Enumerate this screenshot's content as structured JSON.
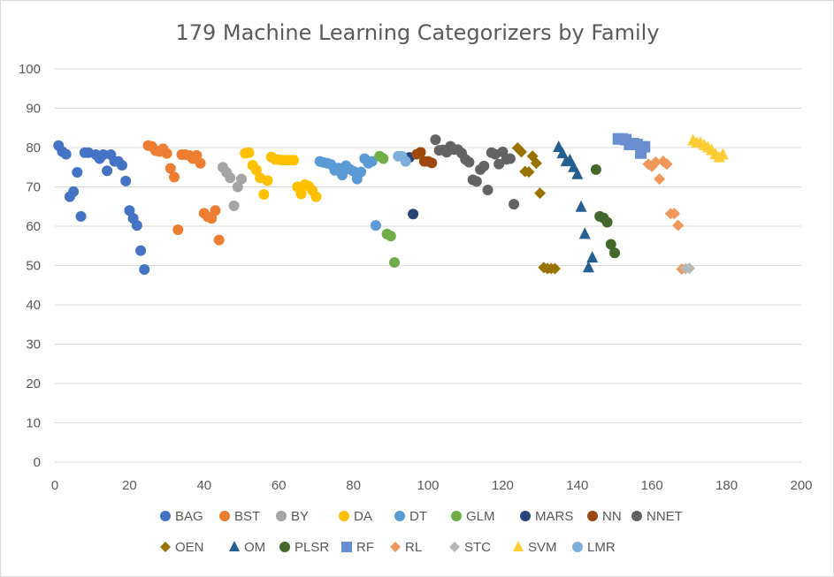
{
  "chart_data": {
    "type": "scatter",
    "title": "179 Machine Learning Categorizers by Family",
    "xlabel": "",
    "ylabel": "",
    "xlim": [
      0,
      200
    ],
    "ylim": [
      0,
      100
    ],
    "x_ticks": [
      "0",
      "20",
      "40",
      "60",
      "80",
      "100",
      "120",
      "140",
      "160",
      "180",
      "200"
    ],
    "y_ticks": [
      "0",
      "10",
      "20",
      "30",
      "40",
      "50",
      "60",
      "70",
      "80",
      "90",
      "100"
    ],
    "grid": "horizontal",
    "legend_position": "bottom",
    "series": [
      {
        "name": "BAG",
        "color": "#4472c4",
        "marker": "circle",
        "points": [
          [
            1,
            80.5
          ],
          [
            2,
            79
          ],
          [
            3,
            78.3
          ],
          [
            4,
            67.5
          ],
          [
            5,
            68.8
          ],
          [
            6,
            73.7
          ],
          [
            7,
            62.5
          ],
          [
            8,
            78.7
          ],
          [
            9,
            78.7
          ],
          [
            11,
            78.2
          ],
          [
            12,
            77.2
          ],
          [
            13,
            78.2
          ],
          [
            14,
            74.1
          ],
          [
            15,
            78.2
          ],
          [
            16,
            76.5
          ],
          [
            17,
            76.5
          ],
          [
            18,
            75.5
          ],
          [
            19,
            71.5
          ],
          [
            20,
            64
          ],
          [
            21,
            62
          ],
          [
            22,
            60.2
          ],
          [
            23,
            53.8
          ],
          [
            24,
            49
          ]
        ]
      },
      {
        "name": "BST",
        "color": "#ed7d31",
        "marker": "circle",
        "points": [
          [
            25,
            80.5
          ],
          [
            26,
            80.3
          ],
          [
            27,
            79.2
          ],
          [
            28,
            79
          ],
          [
            29,
            79.7
          ],
          [
            30,
            78.5
          ],
          [
            31,
            74.7
          ],
          [
            32,
            72.5
          ],
          [
            33,
            59.1
          ],
          [
            34,
            78.2
          ],
          [
            35,
            78.2
          ],
          [
            36,
            78
          ],
          [
            37,
            77.2
          ],
          [
            38,
            78
          ],
          [
            39,
            76
          ],
          [
            40,
            63.3
          ],
          [
            41,
            62.4
          ],
          [
            42,
            62
          ],
          [
            43,
            64
          ],
          [
            44,
            56.5
          ]
        ]
      },
      {
        "name": "BY",
        "color": "#a5a5a5",
        "marker": "circle",
        "points": [
          [
            45,
            75
          ],
          [
            46,
            73.7
          ],
          [
            47,
            72.3
          ],
          [
            48,
            65.2
          ],
          [
            49,
            70
          ],
          [
            50,
            72
          ]
        ]
      },
      {
        "name": "DA",
        "color": "#ffc000",
        "marker": "circle",
        "points": [
          [
            51,
            78.5
          ],
          [
            52,
            78.7
          ],
          [
            53,
            75.5
          ],
          [
            54,
            74.3
          ],
          [
            55,
            72.3
          ],
          [
            56,
            68.1
          ],
          [
            57,
            71.6
          ],
          [
            58,
            77.6
          ],
          [
            59,
            77
          ],
          [
            60,
            76.9
          ],
          [
            61,
            76.8
          ],
          [
            62,
            76.8
          ],
          [
            63,
            76.8
          ],
          [
            64,
            76.8
          ],
          [
            65,
            70
          ],
          [
            66,
            68.2
          ],
          [
            67,
            70.6
          ],
          [
            68,
            70.2
          ],
          [
            69,
            69.1
          ],
          [
            70,
            67.5
          ]
        ]
      },
      {
        "name": "DT",
        "color": "#5b9bd5",
        "marker": "circle",
        "points": [
          [
            71,
            76.5
          ],
          [
            72,
            76.2
          ],
          [
            73,
            76
          ],
          [
            74,
            75.7
          ],
          [
            75,
            74.2
          ],
          [
            76,
            74.8
          ],
          [
            77,
            73
          ],
          [
            78,
            75.4
          ],
          [
            79,
            74.5
          ],
          [
            80,
            74
          ],
          [
            81,
            72
          ],
          [
            82,
            73.8
          ],
          [
            83,
            77.2
          ],
          [
            84,
            76
          ],
          [
            85,
            76.5
          ],
          [
            86,
            60.2
          ]
        ]
      },
      {
        "name": "GLM",
        "color": "#70ad47",
        "marker": "circle",
        "points": [
          [
            87,
            77.8
          ],
          [
            88,
            77.2
          ],
          [
            89,
            58
          ],
          [
            90,
            57.5
          ],
          [
            91,
            50.8
          ]
        ]
      },
      {
        "name": "MARS",
        "color": "#264478",
        "marker": "circle",
        "points": [
          [
            95,
            77.5
          ],
          [
            96,
            63.1
          ]
        ]
      },
      {
        "name": "NN",
        "color": "#9e480e",
        "marker": "circle",
        "points": [
          [
            97,
            78.3
          ],
          [
            98,
            78.8
          ],
          [
            99,
            76.5
          ],
          [
            100,
            76.5
          ],
          [
            101,
            76.1
          ]
        ]
      },
      {
        "name": "NNET",
        "color": "#636363",
        "marker": "circle",
        "points": [
          [
            102,
            82
          ],
          [
            103,
            79.3
          ],
          [
            104,
            79.4
          ],
          [
            105,
            78.8
          ],
          [
            106,
            80.3
          ],
          [
            107,
            79.5
          ],
          [
            108,
            79.5
          ],
          [
            109,
            78.6
          ],
          [
            110,
            77
          ],
          [
            111,
            76.3
          ],
          [
            112,
            71.8
          ],
          [
            113,
            71.4
          ],
          [
            114,
            74.4
          ],
          [
            115,
            75.3
          ],
          [
            116,
            69.2
          ],
          [
            117,
            78.7
          ],
          [
            118,
            78.3
          ],
          [
            119,
            75.8
          ],
          [
            120,
            78.9
          ],
          [
            121,
            77
          ],
          [
            122,
            77.2
          ],
          [
            123,
            65.6
          ]
        ]
      },
      {
        "name": "OEN",
        "color": "#997300",
        "marker": "diamond",
        "points": [
          [
            124,
            79.9
          ],
          [
            125,
            78.9
          ],
          [
            126,
            73.9
          ],
          [
            127,
            73.8
          ],
          [
            128,
            77.8
          ],
          [
            129,
            76
          ],
          [
            130,
            68.4
          ],
          [
            131,
            49.5
          ],
          [
            132,
            49.2
          ],
          [
            133,
            49.2
          ],
          [
            134,
            49.2
          ]
        ]
      },
      {
        "name": "OM",
        "color": "#255e91",
        "marker": "triangle",
        "points": [
          [
            135,
            80.1
          ],
          [
            136,
            78.5
          ],
          [
            137,
            76.5
          ],
          [
            138,
            76.8
          ],
          [
            139,
            75
          ],
          [
            140,
            73.2
          ],
          [
            141,
            64.9
          ],
          [
            142,
            58
          ],
          [
            143,
            49.5
          ],
          [
            144,
            52
          ]
        ]
      },
      {
        "name": "PLSR",
        "color": "#43682b",
        "marker": "circle",
        "points": [
          [
            145,
            74.4
          ],
          [
            146,
            62.5
          ],
          [
            147,
            62.1
          ],
          [
            148,
            61
          ],
          [
            149,
            55.4
          ],
          [
            150,
            53.2
          ]
        ]
      },
      {
        "name": "RF",
        "color": "#698ed0",
        "marker": "square",
        "points": [
          [
            151,
            82.2
          ],
          [
            152,
            82.2
          ],
          [
            153,
            82
          ],
          [
            154,
            80.8
          ],
          [
            155,
            81
          ],
          [
            156,
            80.8
          ],
          [
            157,
            78.6
          ],
          [
            158,
            80.2
          ]
        ]
      },
      {
        "name": "RL",
        "color": "#f1975a",
        "marker": "diamond",
        "points": [
          [
            159,
            75.8
          ],
          [
            160,
            75.2
          ],
          [
            161,
            76.3
          ],
          [
            162,
            72
          ],
          [
            163,
            76.5
          ],
          [
            164,
            75.8
          ],
          [
            165,
            63.2
          ],
          [
            166,
            63.2
          ],
          [
            167,
            60.2
          ],
          [
            168,
            49.1
          ]
        ]
      },
      {
        "name": "STC",
        "color": "#b7b7b7",
        "marker": "diamond",
        "points": [
          [
            169,
            49.2
          ],
          [
            170,
            49.3
          ]
        ]
      },
      {
        "name": "SVM",
        "color": "#ffcd33",
        "marker": "triangle",
        "points": [
          [
            171,
            81.8
          ],
          [
            172,
            81.2
          ],
          [
            173,
            81.2
          ],
          [
            174,
            80.6
          ],
          [
            175,
            80
          ],
          [
            176,
            79.3
          ],
          [
            177,
            78.3
          ],
          [
            178,
            77.5
          ],
          [
            179,
            78.2
          ]
        ]
      },
      {
        "name": "LMR",
        "color": "#7cafdd",
        "marker": "circle",
        "points": [
          [
            92,
            77.8
          ],
          [
            93,
            77.8
          ],
          [
            94,
            76.5
          ]
        ]
      }
    ]
  }
}
